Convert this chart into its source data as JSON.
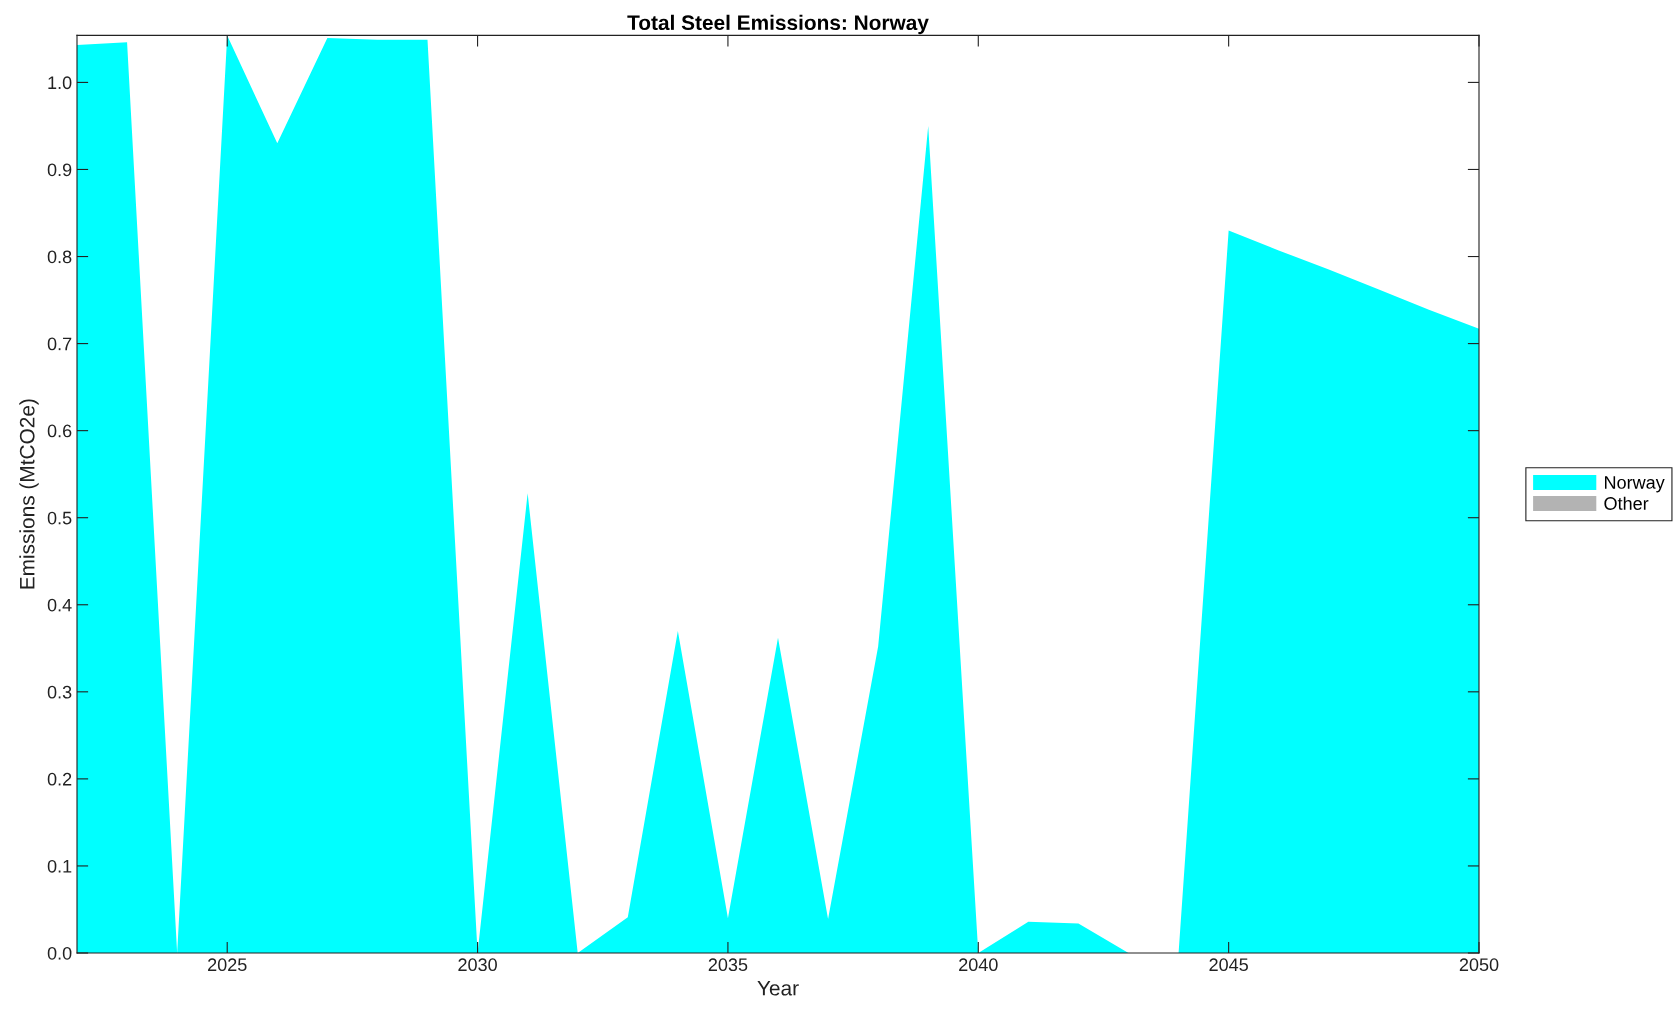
{
  "chart_data": {
    "type": "area",
    "title": "Total Steel Emissions: Norway",
    "xlabel": "Year",
    "ylabel": "Emissions (MtCO2e)",
    "x": [
      2022,
      2023,
      2024,
      2025,
      2026,
      2027,
      2028,
      2029,
      2030,
      2031,
      2032,
      2033,
      2034,
      2035,
      2036,
      2037,
      2038,
      2039,
      2040,
      2041,
      2042,
      2043,
      2044,
      2045,
      2046,
      2047,
      2048,
      2049,
      2050
    ],
    "series": [
      {
        "name": "Norway",
        "color": "#00ffff",
        "values": [
          1.043,
          1.046,
          0,
          1.054,
          0.93,
          1.051,
          1.049,
          1.049,
          0,
          0.528,
          0,
          0.041,
          0.37,
          0.04,
          0.362,
          0.039,
          0.352,
          0.95,
          0,
          0.036,
          0.034,
          0,
          0,
          0.83,
          0.807,
          0.785,
          0.762,
          0.739,
          0.717
        ]
      },
      {
        "name": "Other",
        "color": "#b3b3b3",
        "values": [
          null,
          null,
          null,
          null,
          null,
          null,
          null,
          null,
          null,
          null,
          null,
          null,
          null,
          null,
          null,
          null,
          null,
          null,
          null,
          null,
          null,
          null,
          null,
          null,
          null,
          null,
          null,
          null,
          null
        ]
      }
    ],
    "xlim": [
      2022,
      2050
    ],
    "xticks": [
      2025,
      2030,
      2035,
      2040,
      2045,
      2050
    ],
    "ylim": [
      0,
      1.054
    ],
    "yticks": [
      {
        "value": 0,
        "label": "0.0"
      },
      0.1,
      0.2,
      0.3,
      0.4,
      0.5,
      0.6,
      0.7,
      0.8,
      0.9,
      {
        "value": 1,
        "label": "1.0"
      }
    ],
    "grid": false,
    "legend": "right"
  }
}
